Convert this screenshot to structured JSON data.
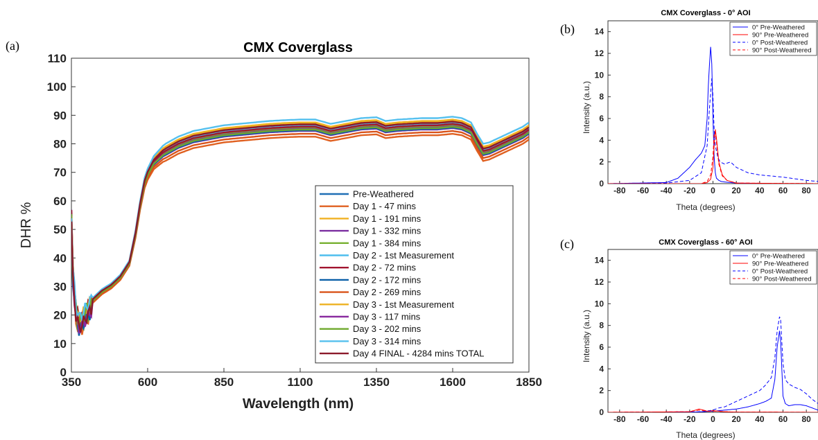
{
  "panels": {
    "a": "(a)",
    "b": "(b)",
    "c": "(c)"
  },
  "chart_data": [
    {
      "type": "line",
      "title": "CMX Coverglass",
      "xlabel": "Wavelength (nm)",
      "ylabel": "DHR %",
      "xlim": [
        350,
        1850
      ],
      "ylim": [
        0,
        110
      ],
      "xticks": [
        350,
        600,
        850,
        1100,
        1350,
        1600,
        1850
      ],
      "yticks": [
        0,
        10,
        20,
        30,
        40,
        50,
        60,
        70,
        80,
        90,
        100,
        110
      ],
      "legend": "bottom-right",
      "grid": false,
      "base_curve": {
        "x": [
          350,
          355,
          365,
          375,
          385,
          400,
          420,
          450,
          480,
          510,
          540,
          560,
          575,
          590,
          600,
          620,
          650,
          700,
          750,
          800,
          850,
          900,
          950,
          1000,
          1050,
          1100,
          1150,
          1200,
          1250,
          1300,
          1350,
          1380,
          1420,
          1500,
          1550,
          1600,
          1630,
          1660,
          1680,
          1700,
          1720,
          1750,
          1780,
          1810,
          1830,
          1850
        ],
        "y": [
          55,
          35,
          22,
          18,
          19,
          22,
          25,
          28,
          30,
          33,
          38,
          48,
          58,
          66,
          69,
          73,
          76,
          79,
          81,
          82,
          83,
          83.5,
          84,
          84.5,
          84.8,
          85,
          85,
          83.5,
          84.5,
          85.5,
          85.8,
          84.5,
          85,
          85.5,
          85.5,
          86,
          85.5,
          84,
          80,
          76.5,
          77,
          78.5,
          80,
          81.5,
          82.5,
          84
        ]
      },
      "series": [
        {
          "name": "Pre-Weathered",
          "color": "#1f6fb5",
          "offset": 0
        },
        {
          "name": "Day 1 - 47 mins",
          "color": "#e06020",
          "offset": -2.5
        },
        {
          "name": "Day 1 - 191 mins",
          "color": "#f0b020",
          "offset": 2.5
        },
        {
          "name": "Day 1 - 332 mins",
          "color": "#7b2fa0",
          "offset": -0.5
        },
        {
          "name": "Day 1 - 384 mins",
          "color": "#77b030",
          "offset": 0.5
        },
        {
          "name": "Day 2 - 1st Measurement",
          "color": "#4dbeee",
          "offset": 1.5
        },
        {
          "name": "Day 2 - 72 mins",
          "color": "#a2142f",
          "offset": 1.0
        },
        {
          "name": "Day 2 - 172 mins",
          "color": "#0a5fa8",
          "offset": -0.3
        },
        {
          "name": "Day 2 - 269 mins",
          "color": "#d9531a",
          "offset": -1.5
        },
        {
          "name": "Day 3 - 1st Measurement",
          "color": "#edb120",
          "offset": 2.0
        },
        {
          "name": "Day 3 - 117 mins",
          "color": "#8a2ca0",
          "offset": 0.2
        },
        {
          "name": "Day 3 - 202 mins",
          "color": "#6ea82c",
          "offset": 0.0
        },
        {
          "name": "Day 3 - 314 mins",
          "color": "#55c0ee",
          "offset": 3.5
        },
        {
          "name": "Day 4 FINAL - 4284 mins TOTAL",
          "color": "#8b1a2a",
          "offset": 1.8
        }
      ]
    },
    {
      "type": "line",
      "title": "CMX Coverglass - 0° AOI",
      "xlabel": "Theta (degrees)",
      "ylabel": "Intensity (a.u.)",
      "xlim": [
        -90,
        90
      ],
      "ylim": [
        0,
        15
      ],
      "xticks": [
        -80,
        -60,
        -40,
        -20,
        0,
        20,
        40,
        60,
        80
      ],
      "yticks": [
        0,
        2,
        4,
        6,
        8,
        10,
        12,
        14
      ],
      "legend": "top-right",
      "series": [
        {
          "name": "0° Pre-Weathered",
          "color": "#0000ff",
          "dash": false,
          "x": [
            -90,
            -40,
            -30,
            -20,
            -15,
            -10,
            -7,
            -5,
            -4,
            -3,
            -2,
            -1,
            0,
            1,
            2,
            3,
            5,
            7,
            10,
            15,
            20,
            40,
            90
          ],
          "y": [
            0,
            0.1,
            0.5,
            1.5,
            2.2,
            2.8,
            3.5,
            6,
            9,
            11,
            12.6,
            11,
            6,
            2.5,
            1,
            0.5,
            0.3,
            0.2,
            0.15,
            0.1,
            0.05,
            0,
            0
          ]
        },
        {
          "name": "90° Pre-Weathered",
          "color": "#ff0000",
          "dash": false,
          "x": [
            -90,
            -10,
            -5,
            -2,
            0,
            1,
            2,
            3,
            5,
            8,
            12,
            20,
            90
          ],
          "y": [
            0,
            0,
            0.1,
            0.4,
            1.5,
            3.5,
            5.0,
            4.2,
            2.0,
            0.8,
            0.3,
            0.05,
            0
          ]
        },
        {
          "name": "0° Post-Weathered",
          "color": "#0000ff",
          "dash": true,
          "x": [
            -90,
            -40,
            -20,
            -10,
            -5,
            -3,
            -1,
            0,
            1,
            2,
            4,
            6,
            10,
            15,
            20,
            30,
            40,
            60,
            80,
            90
          ],
          "y": [
            0,
            0.05,
            0.3,
            1.0,
            3.5,
            7,
            9.7,
            8,
            5,
            3.5,
            2.5,
            2.0,
            1.8,
            2.0,
            1.5,
            1.0,
            0.8,
            0.6,
            0.3,
            0.2
          ]
        },
        {
          "name": "90° Post-Weathered",
          "color": "#ff0000",
          "dash": true,
          "x": [
            -90,
            -10,
            -5,
            -2,
            0,
            1,
            2,
            3,
            5,
            8,
            12,
            20,
            90
          ],
          "y": [
            0,
            0,
            0.2,
            0.8,
            2.5,
            4.5,
            4.8,
            3.8,
            1.8,
            0.7,
            0.3,
            0.05,
            0
          ]
        }
      ]
    },
    {
      "type": "line",
      "title": "CMX Coverglass - 60° AOI",
      "xlabel": "Theta (degrees)",
      "ylabel": "Intensity (a.u.)",
      "xlim": [
        -90,
        90
      ],
      "ylim": [
        0,
        15
      ],
      "xticks": [
        -80,
        -60,
        -40,
        -20,
        0,
        20,
        40,
        60,
        80
      ],
      "yticks": [
        0,
        2,
        4,
        6,
        8,
        10,
        12,
        14
      ],
      "legend": "top-right",
      "series": [
        {
          "name": "0° Pre-Weathered",
          "color": "#0000ff",
          "dash": false,
          "x": [
            -90,
            -20,
            -10,
            0,
            10,
            20,
            30,
            40,
            45,
            50,
            53,
            55,
            57,
            58,
            59,
            60,
            62,
            65,
            70,
            75,
            80,
            85,
            90
          ],
          "y": [
            0,
            0,
            0.05,
            0.1,
            0.2,
            0.3,
            0.5,
            0.8,
            1.0,
            1.3,
            3,
            6,
            7.5,
            6.5,
            4,
            1.5,
            0.8,
            0.6,
            0.7,
            0.7,
            0.6,
            0.4,
            0.2
          ]
        },
        {
          "name": "90° Pre-Weathered",
          "color": "#ff0000",
          "dash": false,
          "x": [
            -90,
            -20,
            -15,
            -12,
            -8,
            -5,
            0,
            5,
            10,
            20,
            90
          ],
          "y": [
            0,
            0.05,
            0.2,
            0.3,
            0.2,
            0.1,
            0.15,
            0.1,
            0.05,
            0.02,
            0
          ]
        },
        {
          "name": "0° Post-Weathered",
          "color": "#0000ff",
          "dash": true,
          "x": [
            -90,
            -20,
            -10,
            0,
            5,
            10,
            20,
            30,
            40,
            45,
            50,
            53,
            55,
            57,
            58,
            59,
            60,
            62,
            65,
            70,
            75,
            80,
            85,
            90
          ],
          "y": [
            0,
            0.02,
            0.05,
            0.2,
            0.4,
            0.5,
            1.0,
            1.5,
            2.0,
            2.5,
            3.2,
            5,
            7.5,
            8.8,
            8.5,
            6.5,
            4.5,
            3.0,
            2.6,
            2.3,
            2.1,
            1.7,
            1.2,
            0.8
          ]
        },
        {
          "name": "90° Post-Weathered",
          "color": "#ff0000",
          "dash": true,
          "x": [
            -90,
            -20,
            -15,
            -12,
            -8,
            -5,
            0,
            5,
            10,
            20,
            90
          ],
          "y": [
            0,
            0.05,
            0.15,
            0.2,
            0.15,
            0.1,
            0.1,
            0.1,
            0.05,
            0.02,
            0
          ]
        }
      ]
    }
  ]
}
